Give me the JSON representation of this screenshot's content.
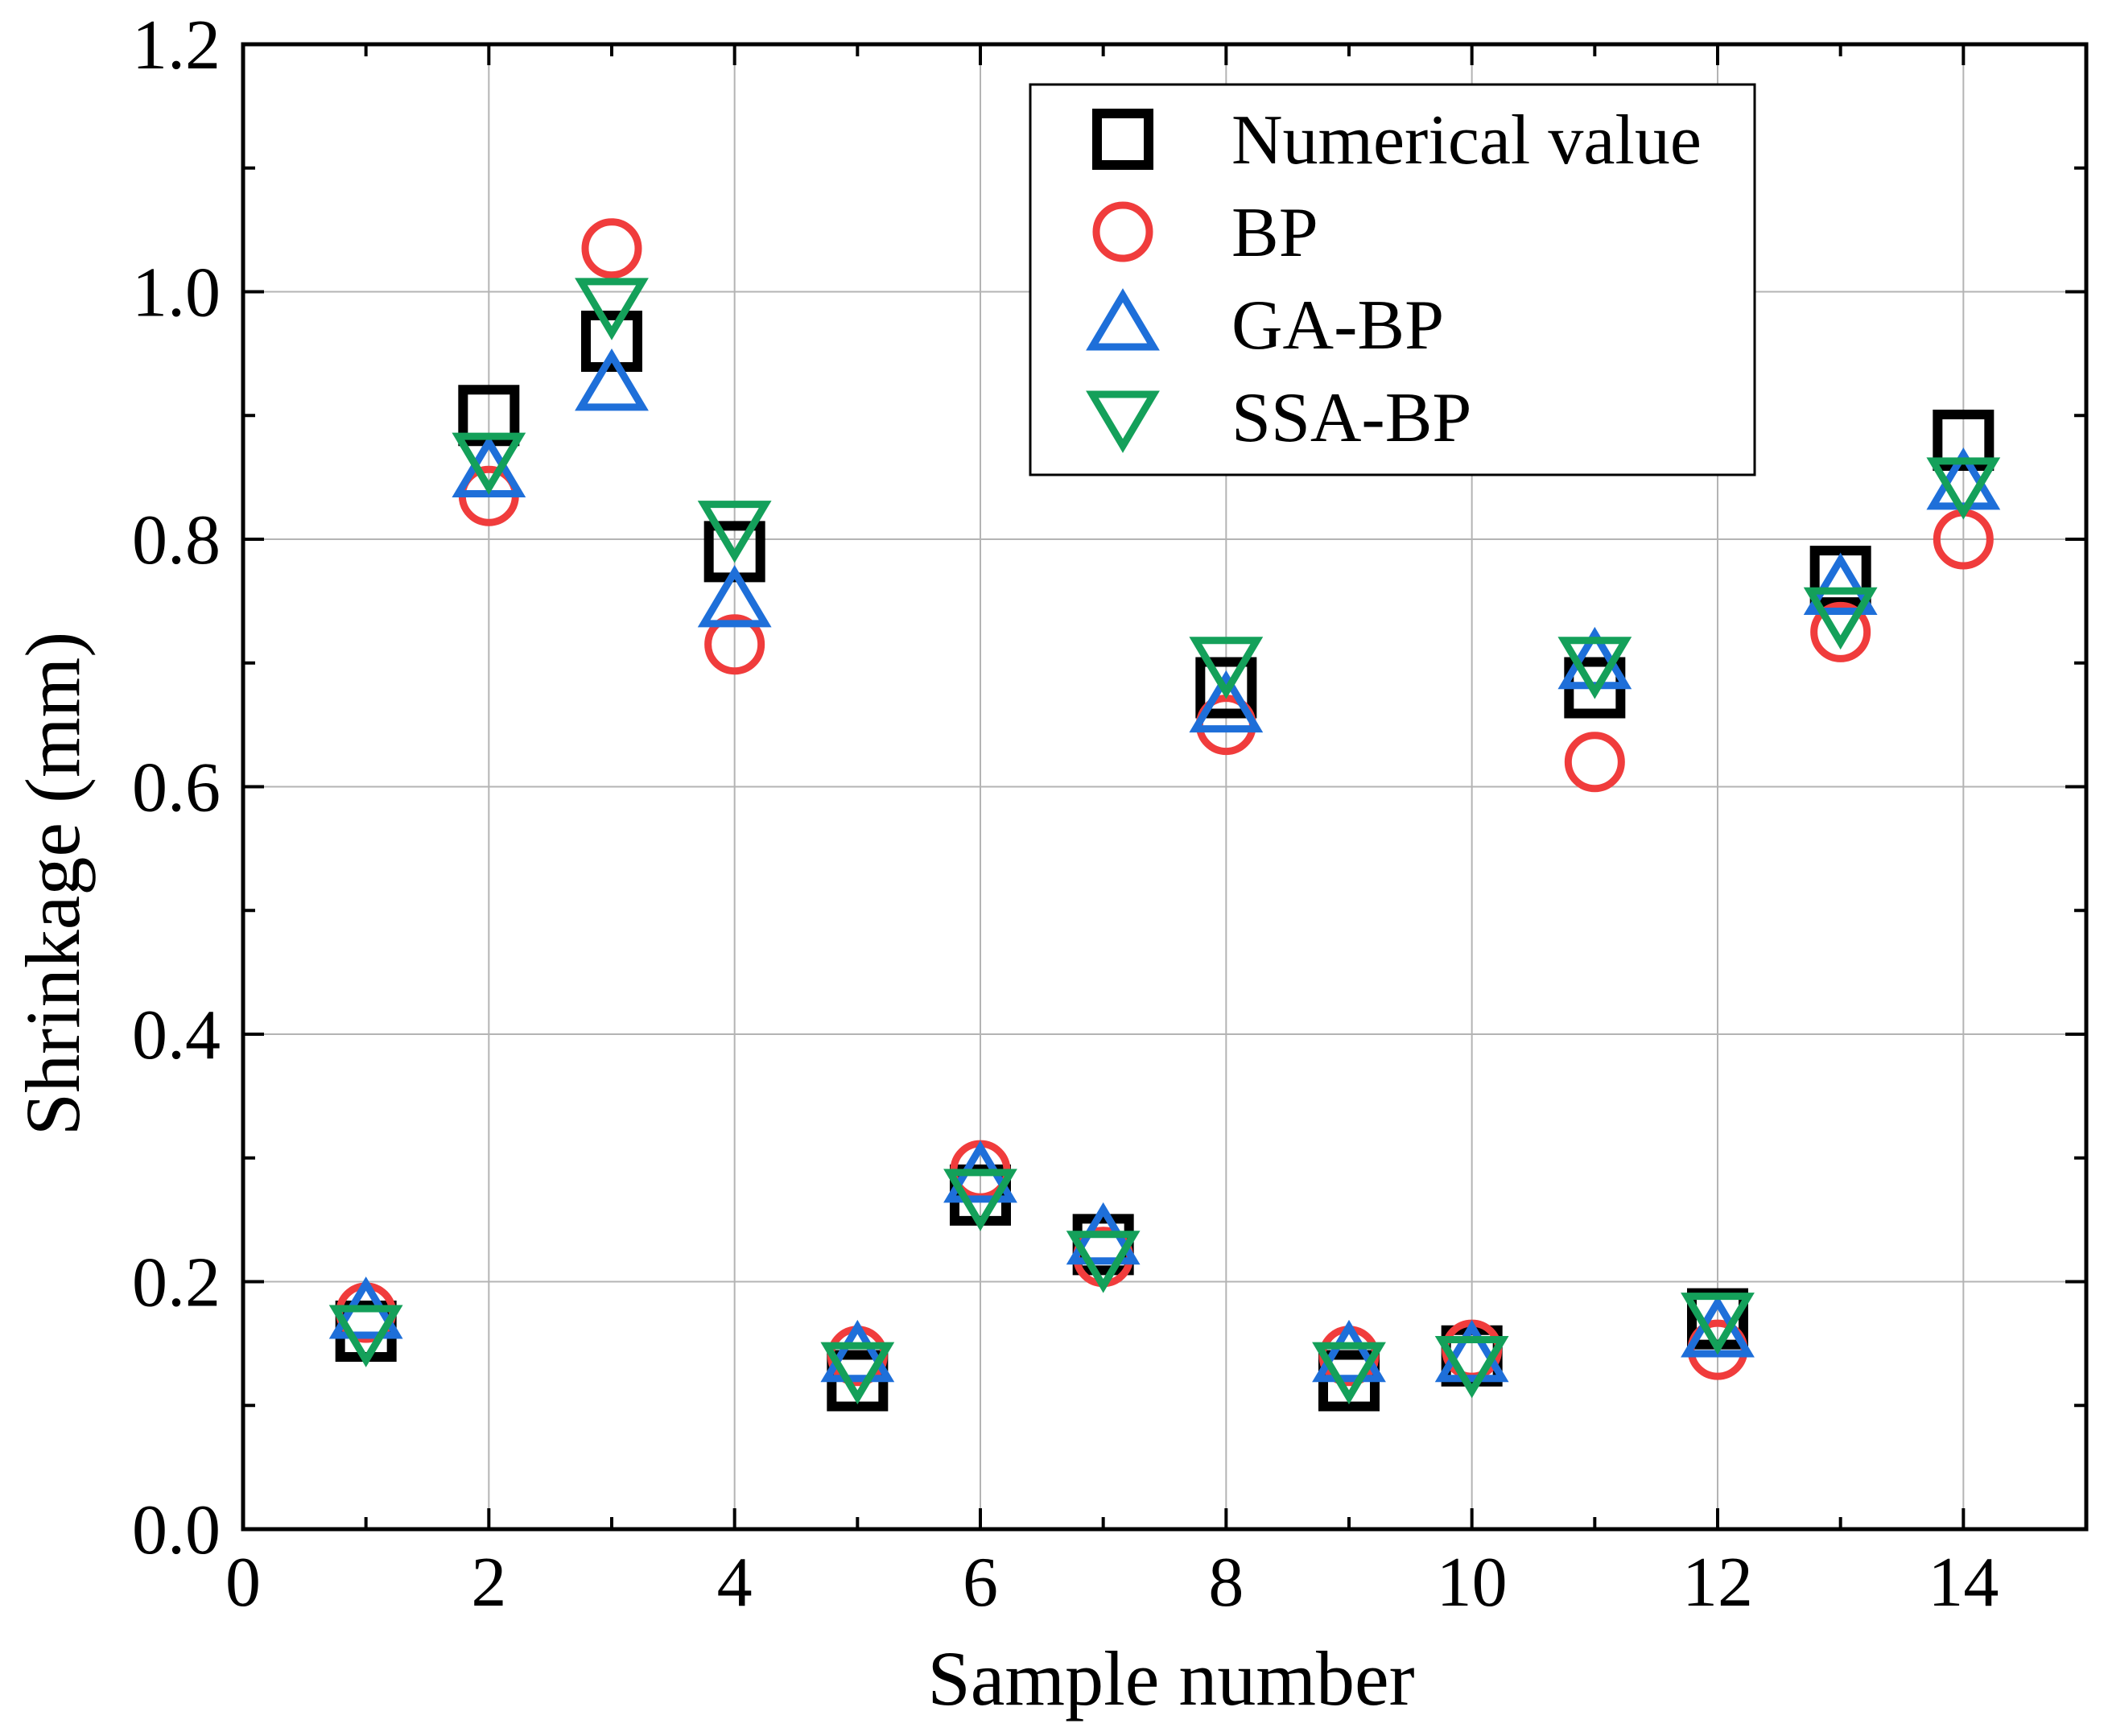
{
  "chart_data": {
    "type": "scatter",
    "title": "",
    "xlabel": "Sample number",
    "ylabel": "Shrinkage (mm)",
    "xlim": [
      0,
      15
    ],
    "ylim": [
      0,
      1.2
    ],
    "xticks": [
      0,
      2,
      4,
      6,
      8,
      10,
      12,
      14
    ],
    "xtick_labels": [
      "0",
      "2",
      "4",
      "6",
      "8",
      "10",
      "12",
      "14"
    ],
    "yticks": [
      0,
      0.2,
      0.4,
      0.6,
      0.8,
      1.0,
      1.2
    ],
    "ytick_labels": [
      "0.0",
      "0.2",
      "0.4",
      "0.6",
      "0.8",
      "1.0",
      "1.2"
    ],
    "grid": true,
    "legend_position": "top-right",
    "x": [
      1,
      2,
      3,
      4,
      5,
      6,
      7,
      8,
      9,
      10,
      11,
      12,
      13,
      14
    ],
    "series": [
      {
        "name": "Numerical value",
        "marker": "square",
        "color": "#000000",
        "values": [
          0.16,
          0.9,
          0.96,
          0.79,
          0.12,
          0.27,
          0.23,
          0.68,
          0.12,
          0.14,
          0.68,
          0.17,
          0.77,
          0.88
        ]
      },
      {
        "name": "BP",
        "marker": "circle",
        "color": "#f03c3c",
        "values": [
          0.175,
          0.835,
          1.035,
          0.715,
          0.14,
          0.29,
          0.22,
          0.65,
          0.14,
          0.145,
          0.62,
          0.145,
          0.725,
          0.8
        ]
      },
      {
        "name": "GA-BP",
        "marker": "triangle-up",
        "color": "#1e6fd9",
        "values": [
          0.175,
          0.855,
          0.925,
          0.75,
          0.14,
          0.285,
          0.235,
          0.665,
          0.14,
          0.14,
          0.7,
          0.16,
          0.76,
          0.845
        ]
      },
      {
        "name": "SSA-BP",
        "marker": "triangle-down",
        "color": "#14a05a",
        "values": [
          0.16,
          0.865,
          0.99,
          0.81,
          0.13,
          0.27,
          0.22,
          0.7,
          0.13,
          0.135,
          0.7,
          0.17,
          0.74,
          0.845
        ]
      }
    ]
  }
}
